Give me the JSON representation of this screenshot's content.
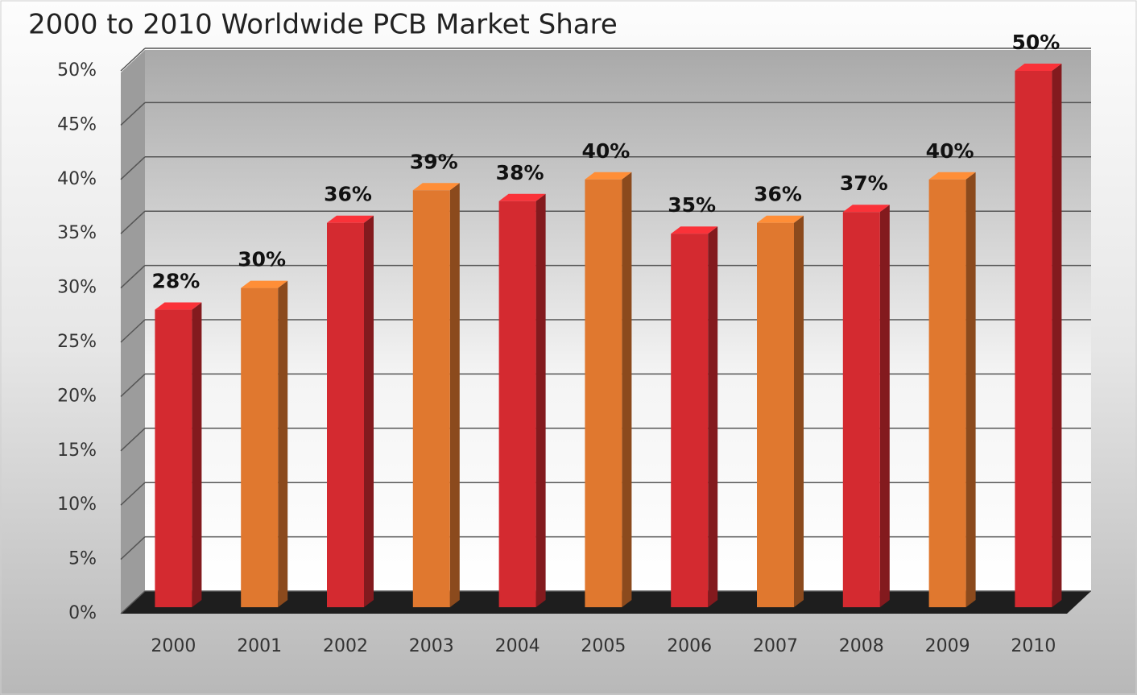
{
  "chart_data": {
    "type": "bar3d",
    "title": "2000 to 2010 Worldwide PCB Market Share",
    "categories": [
      "2000",
      "2001",
      "2002",
      "2003",
      "2004",
      "2005",
      "2006",
      "2007",
      "2008",
      "2009",
      "2010"
    ],
    "values": [
      28,
      30,
      36,
      39,
      38,
      40,
      35,
      36,
      37,
      40,
      50
    ],
    "value_labels": [
      "28%",
      "30%",
      "36%",
      "39%",
      "38%",
      "40%",
      "35%",
      "36%",
      "37%",
      "40%",
      "50%"
    ],
    "colors": [
      "#d42a30",
      "#e0782f",
      "#d42a30",
      "#e0782f",
      "#d42a30",
      "#e0782f",
      "#d42a30",
      "#e0782f",
      "#d42a30",
      "#e0782f",
      "#d42a30"
    ],
    "ylim": [
      0,
      50
    ],
    "yticks": [
      {
        "value": 0,
        "label": "0%"
      },
      {
        "value": 5,
        "label": "5%"
      },
      {
        "value": 10,
        "label": "10%"
      },
      {
        "value": 15,
        "label": "15%"
      },
      {
        "value": 20,
        "label": "20%"
      },
      {
        "value": 25,
        "label": "25%"
      },
      {
        "value": 30,
        "label": "30%"
      },
      {
        "value": 35,
        "label": "35%"
      },
      {
        "value": 40,
        "label": "40%"
      },
      {
        "value": 45,
        "label": "45%"
      },
      {
        "value": 50,
        "label": "50%"
      }
    ],
    "grid": true
  }
}
